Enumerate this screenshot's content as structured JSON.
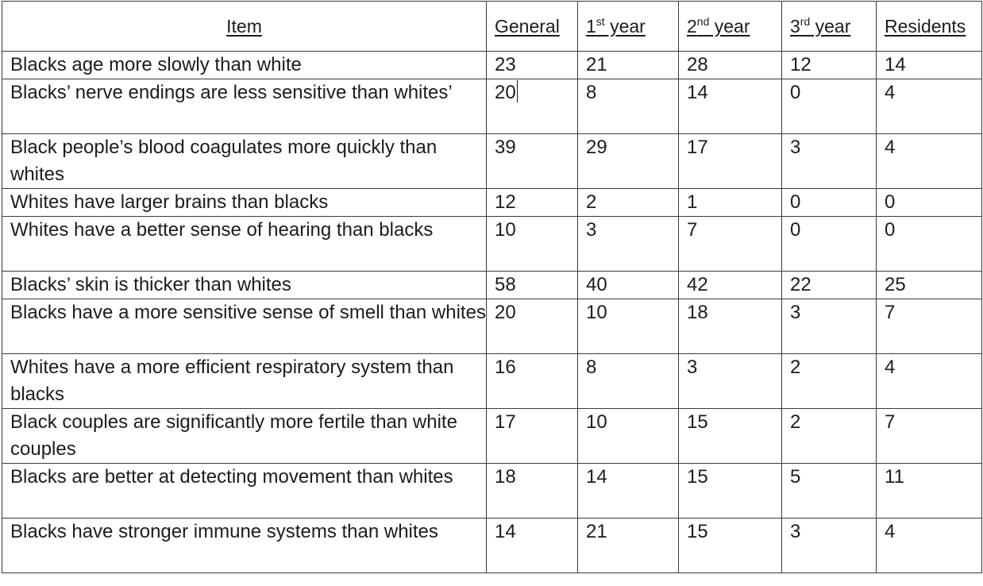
{
  "table": {
    "headers": {
      "item": "Item",
      "general": "General",
      "year1_num": "1",
      "year1_sup": "st",
      "year1_word": " year",
      "year2_num": "2",
      "year2_sup": "nd",
      "year2_word": " year",
      "year3_num": "3",
      "year3_sup": "rd",
      "year3_word": " year",
      "residents": "Residents"
    },
    "rows": [
      {
        "item": "Blacks age more slowly than white",
        "general": "23",
        "year1": "21",
        "year2": "28",
        "year3": "12",
        "residents": "14"
      },
      {
        "item": "Blacks’ nerve endings are less sensitive than whites’",
        "general": "20",
        "year1": "8",
        "year2": "14",
        "year3": "0",
        "residents": "4"
      },
      {
        "item": "Black people’s blood coagulates more quickly than whites",
        "general": "39",
        "year1": "29",
        "year2": "17",
        "year3": "3",
        "residents": "4"
      },
      {
        "item": "Whites have larger brains than blacks",
        "general": "12",
        "year1": "2",
        "year2": "1",
        "year3": "0",
        "residents": "0"
      },
      {
        "item": "Whites have a better sense of hearing than blacks",
        "general": "10",
        "year1": "3",
        "year2": "7",
        "year3": "0",
        "residents": "0"
      },
      {
        "item": "Blacks’ skin is thicker than whites",
        "general": "58",
        "year1": "40",
        "year2": "42",
        "year3": "22",
        "residents": "25"
      },
      {
        "item": "Blacks have a more sensitive sense of smell than whites",
        "general": "20",
        "year1": "10",
        "year2": "18",
        "year3": "3",
        "residents": "7"
      },
      {
        "item": "Whites have a more efficient respiratory system than blacks",
        "general": "16",
        "year1": "8",
        "year2": "3",
        "year3": "2",
        "residents": "4"
      },
      {
        "item": "Black couples are significantly more fertile than white couples",
        "general": "17",
        "year1": "10",
        "year2": "15",
        "year3": "2",
        "residents": "7"
      },
      {
        "item": "Blacks are better at detecting movement than whites",
        "general": "18",
        "year1": "14",
        "year2": "15",
        "year3": "5",
        "residents": "11"
      },
      {
        "item": "Blacks have stronger immune systems than whites",
        "general": "14",
        "year1": "21",
        "year2": "15",
        "year3": "3",
        "residents": "4"
      }
    ]
  }
}
